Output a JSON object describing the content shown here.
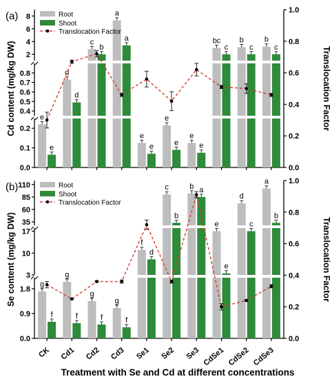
{
  "chart_data": [
    {
      "panel_label": "(a)",
      "type": "bar",
      "categories": [
        "CK",
        "Cd1",
        "Cd2",
        "Cd3",
        "Se1",
        "Se2",
        "Se3",
        "CdSe1",
        "CdSe2",
        "CdSe3"
      ],
      "series": [
        {
          "name": "Root",
          "color": "#bdbdbd",
          "values": [
            0.22,
            0.73,
            2.8,
            7.3,
            0.125,
            0.215,
            0.125,
            3.0,
            3.1,
            3.2
          ],
          "labels": [
            "e",
            "d",
            "c",
            "a",
            "e",
            "e",
            "e",
            "bc",
            "b",
            "b"
          ]
        },
        {
          "name": "Shoot",
          "color": "#2e8b3a",
          "values": [
            0.065,
            0.49,
            2.0,
            3.4,
            0.07,
            0.09,
            0.075,
            2.0,
            2.0,
            2.0
          ],
          "labels": [
            "e",
            "d",
            "b",
            "a",
            "e",
            "e",
            "e",
            "c",
            "c",
            "c"
          ]
        },
        {
          "name": "Translocation Factor",
          "type": "line",
          "color": "#d93a2b",
          "values": [
            0.3,
            0.67,
            0.72,
            0.46,
            0.56,
            0.42,
            0.62,
            0.51,
            0.5,
            0.46
          ],
          "errors": [
            0.05,
            0.01,
            0.02,
            0.01,
            0.05,
            0.06,
            0.04,
            0.01,
            0.03,
            0.01
          ]
        }
      ],
      "ylabel": "Cd content (mg/kg DW)",
      "y2label": "Translocation Factor",
      "y_segments": [
        {
          "range": [
            0,
            0.25
          ],
          "ticks": [
            "0.0",
            "0.1",
            "0.2"
          ],
          "tick_values": [
            0,
            0.1,
            0.2
          ]
        },
        {
          "range": [
            0.35,
            0.9
          ],
          "ticks": [
            "0.4",
            "0.5",
            "0.6",
            "0.7",
            "0.8"
          ],
          "tick_values": [
            0.4,
            0.5,
            0.6,
            0.7,
            0.8
          ]
        },
        {
          "range": [
            1,
            9
          ],
          "ticks": [
            "2",
            "4",
            "6",
            "8"
          ],
          "tick_values": [
            2,
            4,
            6,
            8
          ]
        }
      ],
      "y2lim": [
        0,
        1.0
      ],
      "y2ticks": [
        "0.0",
        "0.2",
        "0.4",
        "0.6",
        "0.8",
        "1.0"
      ],
      "legend": "top-left"
    },
    {
      "panel_label": "(b)",
      "type": "bar",
      "categories": [
        "CK",
        "Cd1",
        "Cd2",
        "Cd3",
        "Se1",
        "Se2",
        "Se3",
        "CdSe1",
        "CdSe2",
        "CdSe3"
      ],
      "series": [
        {
          "name": "Root",
          "color": "#bdbdbd",
          "values": [
            1.7,
            2.05,
            1.35,
            1.1,
            11.0,
            90,
            92,
            17,
            72,
            102
          ],
          "labels": [
            "g",
            "g",
            "g",
            "g",
            "f",
            "c",
            "b",
            "e",
            "d",
            "a"
          ]
        },
        {
          "name": "Shoot",
          "color": "#2e8b3a",
          "values": [
            0.6,
            0.55,
            0.5,
            0.4,
            8.0,
            33,
            85,
            3.5,
            17,
            33
          ],
          "labels": [
            "f",
            "f",
            "f",
            "f",
            "d",
            "b",
            "a",
            "e",
            "c",
            "b"
          ]
        },
        {
          "name": "Translocation Factor",
          "type": "line",
          "color": "#d93a2b",
          "values": [
            0.34,
            0.25,
            0.36,
            0.36,
            0.72,
            0.36,
            0.91,
            0.2,
            0.24,
            0.33
          ],
          "errors": [
            0.02,
            0.005,
            0.005,
            0.01,
            0.03,
            0.01,
            0.02,
            0.02,
            0.005,
            0.01
          ]
        }
      ],
      "ylabel": "Se content (mg/kg DW)",
      "y2label": "Translocation Factor",
      "y_segments": [
        {
          "range": [
            0,
            2.2
          ],
          "ticks": [
            "0.0",
            "0.9",
            "1.8"
          ],
          "tick_values": [
            0,
            0.9,
            1.8
          ]
        },
        {
          "range": [
            3,
            18
          ],
          "ticks": [
            "3",
            "10",
            "17"
          ],
          "tick_values": [
            3,
            10,
            17
          ]
        },
        {
          "range": [
            28,
            118
          ],
          "ticks": [
            "35",
            "60",
            "85",
            "110"
          ],
          "tick_values": [
            35,
            60,
            85,
            110
          ]
        }
      ],
      "y2lim": [
        0,
        1.0
      ],
      "y2ticks": [
        "0.0",
        "0.2",
        "0.4",
        "0.6",
        "0.8",
        "1.0"
      ],
      "legend": "top-left"
    }
  ],
  "xlabel": "Treatment with Se and Cd at different concentrations",
  "legend_labels": {
    "root": "Root",
    "shoot": "Shoot",
    "tf": "Translocation Factor"
  }
}
